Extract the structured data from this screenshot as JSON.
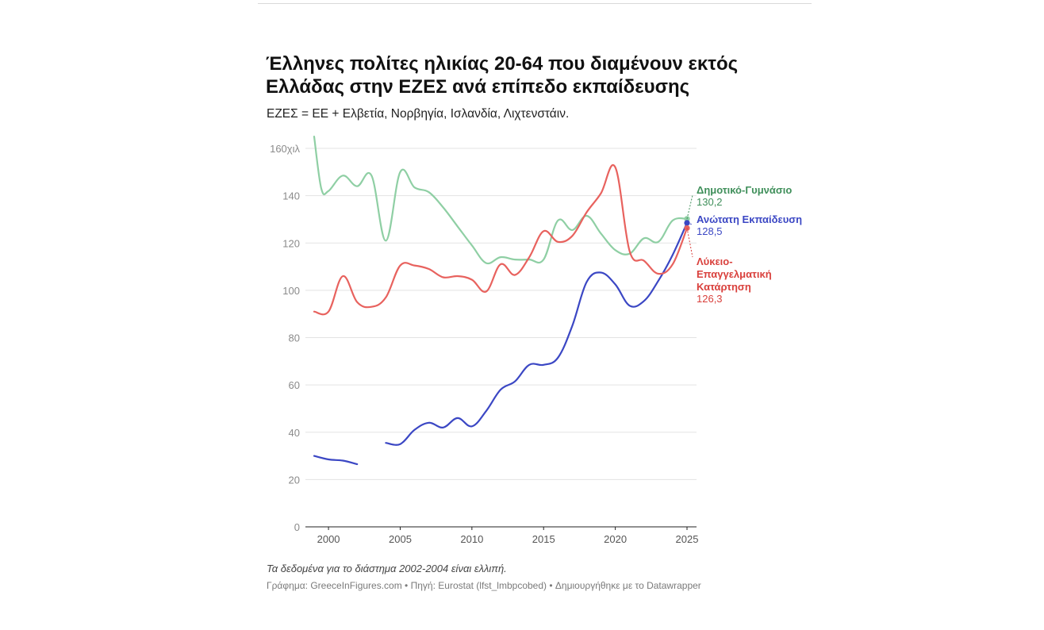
{
  "title": "Έλληνες πολίτες ηλικίας 20-64 που διαμένουν εκτός Ελλάδας στην ΕΖΕΣ ανά επίπεδο εκπαίδευσης",
  "subtitle": "ΕΖΕΣ = ΕΕ + Ελβετία, Νορβηγία, Ισλανδία, Λιχτενστάιν.",
  "note": "Τα δεδομένα για το διάστημα 2002-2004 είναι ελλιπή.",
  "credits": "Γράφημα: GreeceInFigures.com • Πηγή: Eurostat (lfst_lmbpcobed) • Δημιουργήθηκε με το Datawrapper",
  "chart_data": {
    "type": "line",
    "xlabel": "",
    "ylabel": "",
    "xlim": [
      1999,
      2025
    ],
    "ylim": [
      0,
      160
    ],
    "x_ticks": [
      "2000",
      "2005",
      "2010",
      "2015",
      "2020",
      "2025"
    ],
    "y_ticks": [
      "160χιλ",
      "140",
      "120",
      "100",
      "80",
      "60",
      "40",
      "20",
      "0"
    ],
    "grid": true,
    "legend": "direct-labels-right",
    "series": [
      {
        "name": "Δημοτικό-Γυμνάσιο",
        "end_label": "130,2",
        "color": "#8fcfa4",
        "label_color": "#3f8f5a",
        "points": [
          [
            1999.0,
            165.0
          ],
          [
            1999.5,
            143.0
          ],
          [
            2000.0,
            142.0
          ],
          [
            2001.0,
            148.5
          ],
          [
            2002.0,
            144.0
          ],
          [
            2003.0,
            148.5
          ],
          [
            2004.0,
            121.0
          ],
          [
            2005.0,
            150.0
          ],
          [
            2006.0,
            143.5
          ],
          [
            2007.0,
            141.5
          ],
          [
            2008.0,
            135.0
          ],
          [
            2009.0,
            127.0
          ],
          [
            2010.0,
            119.0
          ],
          [
            2011.0,
            111.5
          ],
          [
            2012.0,
            114.0
          ],
          [
            2013.0,
            113.0
          ],
          [
            2014.0,
            113.0
          ],
          [
            2015.0,
            113.0
          ],
          [
            2016.0,
            129.5
          ],
          [
            2017.0,
            125.5
          ],
          [
            2018.0,
            131.5
          ],
          [
            2019.0,
            124.0
          ],
          [
            2020.0,
            117.0
          ],
          [
            2021.0,
            115.5
          ],
          [
            2022.0,
            122.0
          ],
          [
            2023.0,
            120.5
          ],
          [
            2024.0,
            129.5
          ],
          [
            2025.0,
            130.2
          ]
        ]
      },
      {
        "name": "Ανώτατη Εκπαίδευση",
        "end_label": "128,5",
        "color": "#3b47c4",
        "label_color": "#3b47c4",
        "points": [
          [
            1999.0,
            30.0
          ],
          [
            2000.0,
            28.5
          ],
          [
            2001.0,
            28.0
          ],
          [
            2002.0,
            26.5
          ],
          null,
          [
            2004.0,
            35.5
          ],
          [
            2005.0,
            35.0
          ],
          [
            2006.0,
            41.0
          ],
          [
            2007.0,
            44.0
          ],
          [
            2008.0,
            42.0
          ],
          [
            2009.0,
            46.0
          ],
          [
            2010.0,
            42.5
          ],
          [
            2011.0,
            49.0
          ],
          [
            2012.0,
            58.0
          ],
          [
            2013.0,
            61.5
          ],
          [
            2014.0,
            68.5
          ],
          [
            2015.0,
            68.5
          ],
          [
            2016.0,
            71.5
          ],
          [
            2017.0,
            85.0
          ],
          [
            2018.0,
            103.5
          ],
          [
            2019.0,
            107.5
          ],
          [
            2020.0,
            102.5
          ],
          [
            2021.0,
            93.5
          ],
          [
            2022.0,
            95.5
          ],
          [
            2023.0,
            104.0
          ],
          [
            2024.0,
            115.0
          ],
          [
            2025.0,
            128.5
          ]
        ]
      },
      {
        "name": "Λύκειο-Επαγγελματική Κατάρτηση",
        "name_lines": [
          "Λύκειο-",
          "Επαγγελματική",
          "Κατάρτηση"
        ],
        "end_label": "126,3",
        "color": "#e8625e",
        "label_color": "#d9403c",
        "points": [
          [
            1999.0,
            91.0
          ],
          [
            2000.0,
            91.0
          ],
          [
            2001.0,
            106.0
          ],
          [
            2002.0,
            95.0
          ],
          [
            2003.0,
            93.0
          ],
          [
            2004.0,
            97.0
          ],
          [
            2005.0,
            110.5
          ],
          [
            2006.0,
            110.5
          ],
          [
            2007.0,
            109.0
          ],
          [
            2008.0,
            105.5
          ],
          [
            2009.0,
            106.0
          ],
          [
            2010.0,
            104.5
          ],
          [
            2011.0,
            99.5
          ],
          [
            2012.0,
            111.0
          ],
          [
            2013.0,
            106.5
          ],
          [
            2014.0,
            114.0
          ],
          [
            2015.0,
            125.0
          ],
          [
            2016.0,
            120.5
          ],
          [
            2017.0,
            123.0
          ],
          [
            2018.0,
            133.0
          ],
          [
            2019.0,
            141.0
          ],
          [
            2020.0,
            152.0
          ],
          [
            2021.0,
            116.5
          ],
          [
            2022.0,
            112.5
          ],
          [
            2023.0,
            107.0
          ],
          [
            2024.0,
            111.0
          ],
          [
            2025.0,
            126.3
          ]
        ]
      }
    ]
  }
}
